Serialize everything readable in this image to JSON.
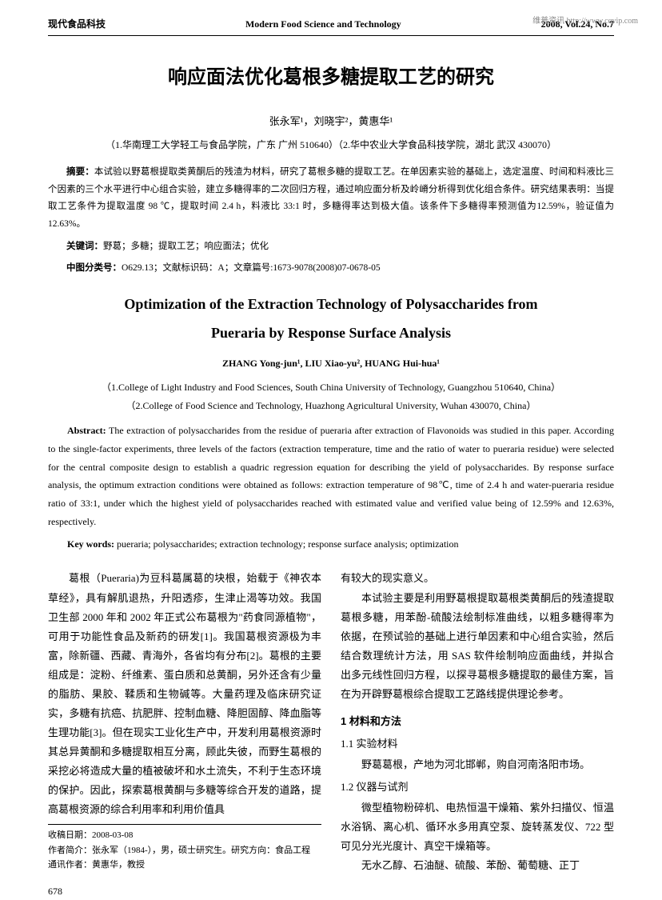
{
  "watermark": "维普资讯 http://www.cqvip.com",
  "header": {
    "left": "现代食品科技",
    "center": "Modern Food Science and Technology",
    "right": "2008, Vol.24, No.7"
  },
  "title_cn": "响应面法优化葛根多糖提取工艺的研究",
  "authors_cn": "张永军¹，刘晓宇²，黄惠华¹",
  "affiliations_cn": "（1.华南理工大学轻工与食品学院，广东 广州 510640）（2.华中农业大学食品科技学院，湖北 武汉 430070）",
  "abstract_cn_label": "摘要：",
  "abstract_cn": "本试验以野葛根提取类黄酮后的残渣为材料，研究了葛根多糖的提取工艺。在单因素实验的基础上，选定温度、时间和料液比三个因素的三个水平进行中心组合实验，建立多糖得率的二次回归方程，通过响应面分析及岭嵴分析得到优化组合条件。研究结果表明：当提取工艺条件为提取温度 98 ℃，提取时间 2.4 h，料液比 33:1 时，多糖得率达到极大值。该条件下多糖得率预测值为12.59%，验证值为 12.63%。",
  "keywords_cn_label": "关键词：",
  "keywords_cn": "野葛；多糖；提取工艺；响应面法；优化",
  "classification_label": "中图分类号：",
  "classification": "O629.13；文献标识码：A；文章篇号:1673-9078(2008)07-0678-05",
  "title_en": "Optimization of the Extraction Technology of Polysaccharides from",
  "subtitle_en": "Pueraria by Response Surface Analysis",
  "authors_en": "ZHANG Yong-jun¹, LIU Xiao-yu², HUANG Hui-hua¹",
  "affiliations_en_1": "（1.College of Light Industry and Food Sciences, South China University of Technology, Guangzhou 510640, China）",
  "affiliations_en_2": "（2.College of Food Science and Technology, Huazhong Agricultural University, Wuhan 430070, China）",
  "abstract_en_label": "Abstract:",
  "abstract_en": " The extraction of polysaccharides from the residue of pueraria after extraction of Flavonoids was studied in this paper. According to the single-factor experiments, three levels of the factors (extraction temperature, time and the ratio of water to pueraria residue) were selected for the central composite design to establish a quadric regression equation for describing the yield of polysaccharides. By response surface analysis, the optimum extraction conditions were obtained as follows: extraction temperature of 98℃, time of 2.4 h and water-pueraria residue ratio of 33:1, under which the highest yield of polysaccharides reached with estimated value and verified value being of 12.59% and 12.63%, respectively.",
  "keywords_en_label": "Key words:",
  "keywords_en": " pueraria; polysaccharides; extraction technology; response surface analysis; optimization",
  "body": {
    "col1_p1": "葛根（Pueraria)为豆科葛属葛的块根，始载于《神农本草经》，具有解肌退热，升阳透疹，生津止渴等功效。我国卫生部 2000 年和 2002 年正式公布葛根为\"药食同源植物\"，可用于功能性食品及新药的研发[1]。我国葛根资源极为丰富，除新疆、西藏、青海外，各省均有分布[2]。葛根的主要组成是：淀粉、纤维素、蛋白质和总黄酮，另外还含有少量的脂肪、果胶、鞣质和生物碱等。大量药理及临床研究证实，多糖有抗癌、抗肥胖、控制血糖、降胆固醇、降血脂等生理功能[3]。但在现实工业化生产中，开发利用葛根资源时其总异黄酮和多糖提取相互分离，顾此失彼，而野生葛根的采挖必将造成大量的植被破坏和水土流失，不利于生态环境的保护。因此，探索葛根黄酮与多糖等综合开发的道路，提高葛根资源的综合利用率和利用价值具",
    "col2_p1": "有较大的现实意义。",
    "col2_p2": "本试验主要是利用野葛根提取葛根类黄酮后的残渣提取葛根多糖，用苯酚-硫酸法绘制标准曲线，以粗多糖得率为依据，在预试验的基础上进行单因素和中心组合实验，然后结合数理统计方法，用 SAS 软件绘制响应面曲线，并拟合出多元线性回归方程，以探寻葛根多糖提取的最佳方案，旨在为开辟野葛根综合提取工艺路线提供理论参考。",
    "section1": "1  材料和方法",
    "sub11": "1.1  实验材料",
    "sub11_text": "野葛葛根，产地为河北邯郸，购自河南洛阳市场。",
    "sub12": "1.2  仪器与试剂",
    "sub12_text": "微型植物粉碎机、电热恒温干燥箱、紫外扫描仪、恒温水浴锅、离心机、循环水多用真空泵、旋转蒸发仪、722 型可见分光光度计、真空干燥箱等。",
    "sub12_text2": "无水乙醇、石油醚、硫酸、苯酚、葡萄糖、正丁"
  },
  "footer": {
    "received": "收稿日期：2008-03-08",
    "author_intro": "作者简介：张永军（1984-），男，硕士研究生。研究方向：食品工程",
    "corresponding": "通讯作者：黄惠华，教授"
  },
  "page_number": "678"
}
